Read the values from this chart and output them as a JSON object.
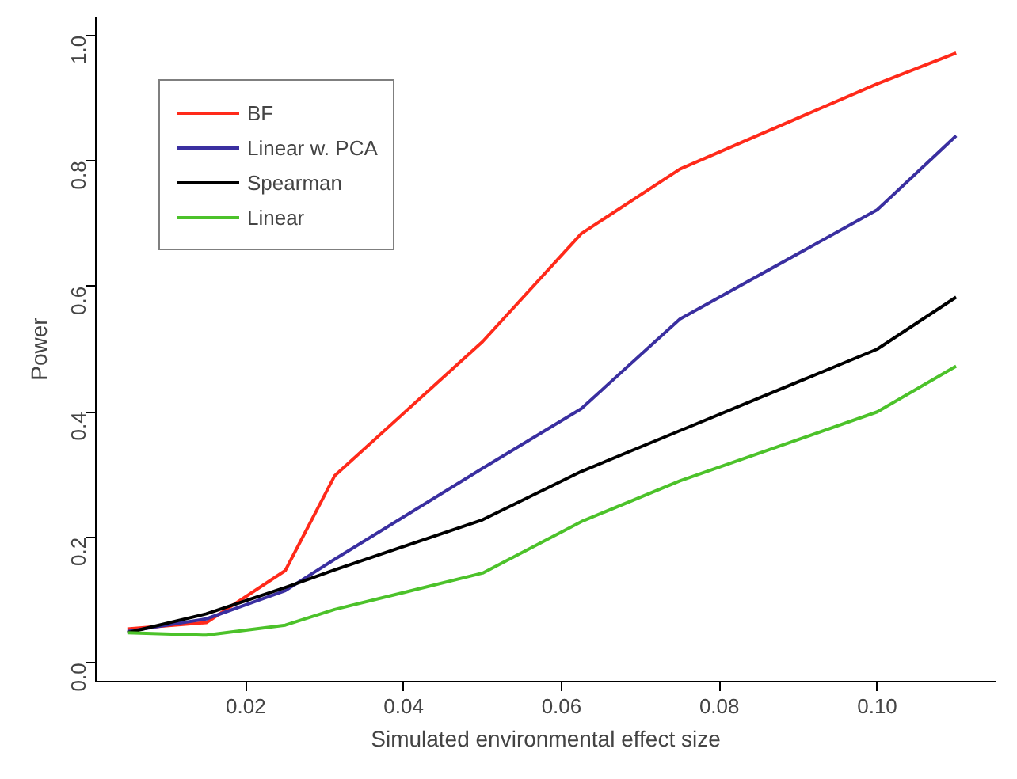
{
  "chart_data": {
    "type": "line",
    "xlabel": "Simulated environmental effect size",
    "ylabel": "Power",
    "x": [
      0.005,
      0.015,
      0.025,
      0.03125,
      0.05,
      0.0625,
      0.075,
      0.1,
      0.11
    ],
    "series": [
      {
        "name": "BF",
        "color": "#ff2a1a",
        "values": [
          0.054,
          0.064,
          0.147,
          0.298,
          0.512,
          0.684,
          0.787,
          0.923,
          0.972
        ]
      },
      {
        "name": "Linear w. PCA",
        "color": "#3a2fa0",
        "values": [
          0.05,
          0.07,
          0.115,
          0.165,
          0.31,
          0.405,
          0.548,
          0.722,
          0.84
        ]
      },
      {
        "name": "Spearman",
        "color": "#000000",
        "values": [
          0.048,
          0.078,
          0.12,
          0.148,
          0.228,
          0.305,
          0.37,
          0.5,
          0.583
        ]
      },
      {
        "name": "Linear",
        "color": "#4cc22a",
        "values": [
          0.048,
          0.044,
          0.06,
          0.085,
          0.143,
          0.225,
          0.29,
          0.4,
          0.473
        ]
      }
    ],
    "xlim": [
      0.001,
      0.115
    ],
    "ylim": [
      -0.03,
      1.03
    ],
    "xticks": [
      0.02,
      0.04,
      0.06,
      0.08,
      {
        "value": 0.1,
        "label": "0.10"
      }
    ],
    "yticks": [
      {
        "value": 0,
        "label": "0.0"
      },
      {
        "value": 0.2,
        "label": "0.2"
      },
      {
        "value": 0.4,
        "label": "0.4"
      },
      {
        "value": 0.6,
        "label": "0.6"
      },
      {
        "value": 0.8,
        "label": "0.8"
      },
      {
        "value": 1,
        "label": "1.0"
      }
    ],
    "grid": false,
    "legend": "top left",
    "marker": "none",
    "line_style": "solid"
  }
}
